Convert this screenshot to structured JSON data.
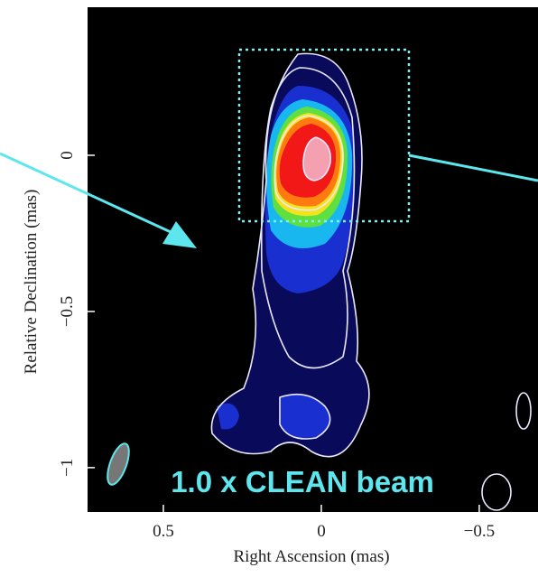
{
  "chart_data": {
    "type": "contour",
    "xlabel": "Right Ascension  (mas)",
    "ylabel": "Relative Declination  (mas)",
    "annotation": "1.0 x CLEAN beam",
    "xlim": [
      0.74,
      -0.686
    ],
    "ylim": [
      -1.142,
      0.474
    ],
    "xticks": [
      0.5,
      0,
      {
        "value": -0.5,
        "label": "−0.5"
      }
    ],
    "yticks": [
      0,
      {
        "value": -0.5,
        "label": "−0.5"
      },
      {
        "value": -1,
        "label": "−1"
      }
    ]
  }
}
